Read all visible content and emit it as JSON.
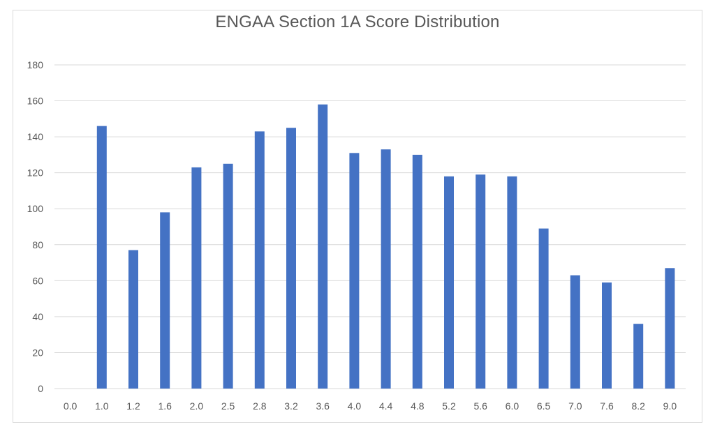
{
  "chart_data": {
    "type": "bar",
    "title": "ENGAA Section 1A Score Distribution",
    "xlabel": "",
    "ylabel": "",
    "categories": [
      "0.0",
      "1.0",
      "1.2",
      "1.6",
      "2.0",
      "2.5",
      "2.8",
      "3.2",
      "3.6",
      "4.0",
      "4.4",
      "4.8",
      "5.2",
      "5.6",
      "6.0",
      "6.5",
      "7.0",
      "7.6",
      "8.2",
      "9.0"
    ],
    "values": [
      0,
      146,
      77,
      98,
      123,
      125,
      143,
      145,
      158,
      131,
      133,
      130,
      118,
      119,
      118,
      89,
      63,
      59,
      36,
      67
    ],
    "ylim": [
      0,
      180
    ],
    "yticks": [
      0,
      20,
      40,
      60,
      80,
      100,
      120,
      140,
      160,
      180
    ],
    "grid": true,
    "legend": "none",
    "bar_color": "#4472c4",
    "grid_color": "#d9d9d9",
    "text_color": "#595959"
  }
}
